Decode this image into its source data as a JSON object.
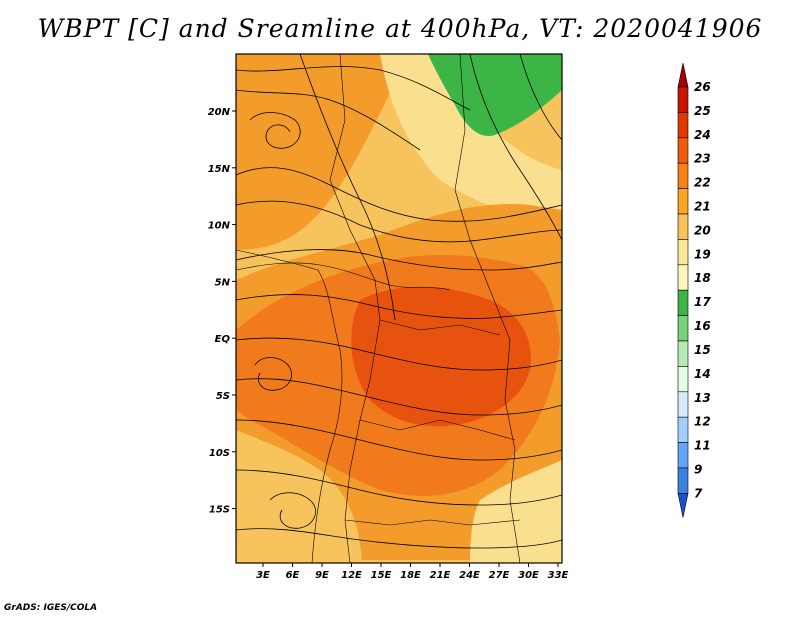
{
  "title": "WBPT [C] and Sreamline at 400hPa, VT: 2020041906",
  "credit": "GrADS: IGES/COLA",
  "lat_ticks": [
    "20N",
    "15N",
    "10N",
    "5N",
    "EQ",
    "5S",
    "10S",
    "15S"
  ],
  "lon_ticks": [
    "3E",
    "6E",
    "9E",
    "12E",
    "15E",
    "18E",
    "21E",
    "24E",
    "27E",
    "30E",
    "33E"
  ],
  "colorbar": {
    "labels": [
      "26",
      "25",
      "24",
      "23",
      "22",
      "21",
      "20",
      "19",
      "18",
      "17",
      "16",
      "15",
      "14",
      "13",
      "12",
      "11",
      "9",
      "7"
    ],
    "colors": [
      "#a50000",
      "#c81400",
      "#e03a00",
      "#f05a0a",
      "#f58214",
      "#faa523",
      "#fac35a",
      "#fae696",
      "#fff5be",
      "#3cb446",
      "#78d278",
      "#b4ecb4",
      "#e1ffe1",
      "#d2ebff",
      "#a0d2ff",
      "#64a5f5",
      "#3c82e1",
      "#2050d2"
    ]
  },
  "fill_colors": {
    "deep": "#e8520f",
    "orange": "#f07a1c",
    "amber": "#f49c2b",
    "light": "#f7c35c",
    "pale": "#fae08e",
    "green": "#3cb446"
  }
}
